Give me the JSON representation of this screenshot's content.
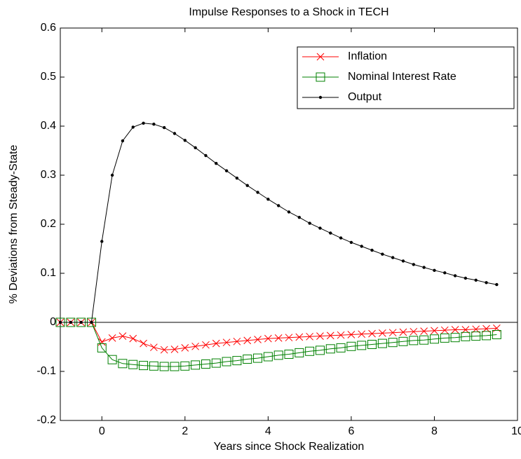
{
  "chart_data": {
    "type": "line",
    "title": "Impulse Responses to a Shock in TECH",
    "x_label": "Years since Shock Realization",
    "y_label": "% Deviations from Steady-State",
    "x": [
      -1,
      -0.75,
      -0.5,
      -0.25,
      0,
      0.25,
      0.5,
      0.75,
      1,
      1.25,
      1.5,
      1.75,
      2,
      2.25,
      2.5,
      2.75,
      3,
      3.25,
      3.5,
      3.75,
      4,
      4.25,
      4.5,
      4.75,
      5,
      5.25,
      5.5,
      5.75,
      6,
      6.25,
      6.5,
      6.75,
      7,
      7.25,
      7.5,
      7.75,
      8,
      8.25,
      8.5,
      8.75,
      9,
      9.25,
      9.5
    ],
    "series": [
      {
        "name": "Inflation",
        "color": "#ff0000",
        "marker": "x",
        "values": [
          0,
          0,
          0,
          0,
          -0.04,
          -0.032,
          -0.028,
          -0.033,
          -0.043,
          -0.051,
          -0.056,
          -0.055,
          -0.052,
          -0.049,
          -0.046,
          -0.043,
          -0.041,
          -0.039,
          -0.037,
          -0.035,
          -0.033,
          -0.032,
          -0.031,
          -0.03,
          -0.029,
          -0.028,
          -0.027,
          -0.026,
          -0.025,
          -0.024,
          -0.023,
          -0.022,
          -0.021,
          -0.02,
          -0.019,
          -0.018,
          -0.017,
          -0.016,
          -0.015,
          -0.015,
          -0.014,
          -0.013,
          -0.012
        ]
      },
      {
        "name": "Nominal Interest Rate",
        "color": "#008000",
        "marker": "square",
        "values": [
          0,
          0,
          0,
          0,
          -0.052,
          -0.076,
          -0.084,
          -0.086,
          -0.088,
          -0.089,
          -0.09,
          -0.09,
          -0.089,
          -0.087,
          -0.085,
          -0.083,
          -0.08,
          -0.078,
          -0.075,
          -0.073,
          -0.07,
          -0.067,
          -0.065,
          -0.062,
          -0.059,
          -0.057,
          -0.054,
          -0.052,
          -0.049,
          -0.047,
          -0.045,
          -0.043,
          -0.041,
          -0.039,
          -0.037,
          -0.036,
          -0.034,
          -0.032,
          -0.031,
          -0.029,
          -0.028,
          -0.027,
          -0.025
        ]
      },
      {
        "name": "Output",
        "color": "#000000",
        "marker": "dot",
        "values": [
          0,
          0,
          0,
          0,
          0.165,
          0.3,
          0.37,
          0.398,
          0.406,
          0.404,
          0.397,
          0.385,
          0.371,
          0.356,
          0.34,
          0.324,
          0.309,
          0.294,
          0.279,
          0.265,
          0.251,
          0.238,
          0.225,
          0.214,
          0.202,
          0.192,
          0.182,
          0.172,
          0.163,
          0.155,
          0.147,
          0.139,
          0.132,
          0.125,
          0.118,
          0.112,
          0.106,
          0.101,
          0.095,
          0.09,
          0.086,
          0.081,
          0.077
        ]
      }
    ],
    "xlim": [
      -1,
      10
    ],
    "xticks": [
      0,
      2,
      4,
      6,
      8,
      10
    ],
    "ylim": [
      -0.2,
      0.6
    ],
    "yticks": [
      -0.2,
      -0.1,
      0,
      0.1,
      0.2,
      0.3,
      0.4,
      0.5,
      0.6
    ],
    "zero_line": true,
    "legend_position": "upper right"
  }
}
